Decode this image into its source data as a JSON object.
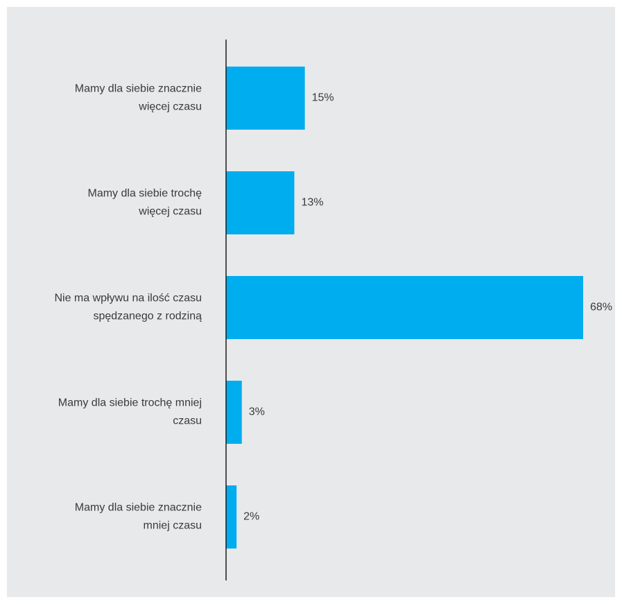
{
  "chart_data": {
    "type": "bar",
    "orientation": "horizontal",
    "title": "",
    "xlabel": "",
    "ylabel": "",
    "grid": false,
    "xlim": [
      0,
      68
    ],
    "bar_color": "#00adef",
    "background_color": "#e8e9eb",
    "axis_color": "#1a1a1a",
    "categories": [
      [
        "Mamy dla siebie znacznie",
        "więcej czasu"
      ],
      [
        "Mamy dla siebie trochę",
        "więcej czasu"
      ],
      [
        "Nie ma wpływu na ilość czasu",
        "spędzanego z rodziną"
      ],
      [
        "Mamy dla siebie trochę mniej",
        "czasu"
      ],
      [
        "Mamy dla siebie znacznie",
        "mniej czasu"
      ]
    ],
    "values": [
      15,
      13,
      68,
      3,
      2
    ],
    "value_labels": [
      "15%",
      "13%",
      "68%",
      "3%",
      "2%"
    ]
  }
}
